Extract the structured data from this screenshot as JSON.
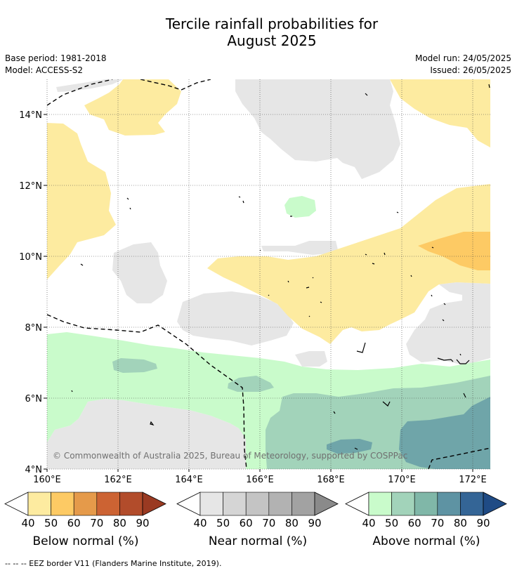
{
  "title_line1": "Tercile rainfall probabilities for",
  "title_line2": "August 2025",
  "meta": {
    "base_period": "Base period: 1981-2018",
    "model": "Model: ACCESS-S2",
    "model_run": "Model run: 24/05/2025",
    "issued": "Issued: 26/05/2025"
  },
  "map": {
    "lat_labels": [
      "14°N",
      "12°N",
      "10°N",
      "8°N",
      "6°N",
      "4°N"
    ],
    "lon_labels": [
      "160°E",
      "162°E",
      "164°E",
      "166°E",
      "168°E",
      "170°E",
      "172°E"
    ],
    "copyright": "© Commonwealth of Australia 2025, Bureau of Meteorology, supported by COSPPac"
  },
  "colorbars": [
    {
      "title": "Below normal (%)",
      "ticks": [
        "40",
        "50",
        "60",
        "70",
        "80",
        "90"
      ],
      "colors": [
        "#fdeba0",
        "#fdca64",
        "#e59a4a",
        "#cc6333",
        "#b24c2b",
        "#9a3a22"
      ]
    },
    {
      "title": "Near normal (%)",
      "ticks": [
        "40",
        "50",
        "60",
        "70",
        "80",
        "90"
      ],
      "colors": [
        "#e6e6e6",
        "#d5d5d5",
        "#c4c4c4",
        "#b2b2b2",
        "#a2a2a2",
        "#8a8a8a"
      ]
    },
    {
      "title": "Above normal (%)",
      "ticks": [
        "40",
        "50",
        "60",
        "70",
        "80",
        "90"
      ],
      "colors": [
        "#c9fbcb",
        "#a2d3ba",
        "#80b7a8",
        "#5e93a3",
        "#346596",
        "#1f4b85"
      ]
    }
  ],
  "footnote": "--  --  -- EEZ border V11 (Flanders Marine Institute, 2019)."
}
